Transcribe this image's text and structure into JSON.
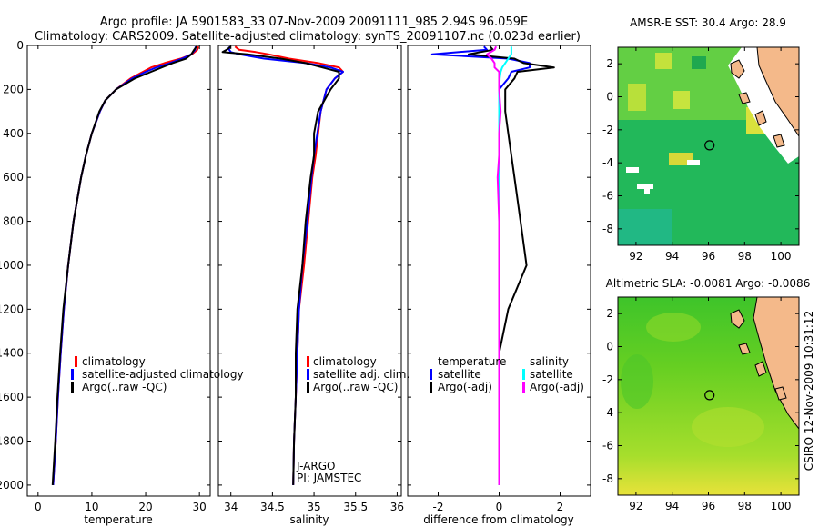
{
  "header": {
    "line1": "Argo profile: JA 5901583_33 07-Nov-2009 20091111_985 2.94S 96.059E",
    "line2": "Climatology: CARS2009. Satellite-adjusted climatology: synTS_20091107.nc (0.023d earlier)"
  },
  "side_text": "CSIRO 12-Nov-2009 10:31:12",
  "colors": {
    "climatology": "#ff0000",
    "satellite": "#0000ff",
    "argo": "#000000",
    "salinity_satellite": "#00ffff",
    "salinity_argo": "#ff00ff",
    "land": "#f4b98a"
  },
  "chart_data": [
    {
      "type": "line",
      "panel": "temperature",
      "xlabel": "temperature",
      "ylabel": "",
      "xlim": [
        -2,
        32
      ],
      "ylim": [
        2050,
        0
      ],
      "xticks": [
        0,
        10,
        20,
        30
      ],
      "yticks": [
        0,
        200,
        400,
        600,
        800,
        1000,
        1200,
        1400,
        1600,
        1800,
        2000
      ],
      "depth": [
        5,
        20,
        40,
        60,
        80,
        100,
        120,
        150,
        200,
        250,
        300,
        400,
        500,
        600,
        800,
        1000,
        1200,
        1400,
        1600,
        1800,
        2000
      ],
      "series": [
        {
          "name": "climatology",
          "color": "#ff0000",
          "values": [
            29.8,
            29.6,
            28.6,
            26.5,
            23.5,
            21.0,
            19.5,
            17.2,
            14.5,
            12.5,
            11.5,
            10.0,
            8.9,
            8.0,
            6.6,
            5.6,
            4.8,
            4.2,
            3.7,
            3.3,
            2.8
          ]
        },
        {
          "name": "satellite-adjusted climatology",
          "color": "#0000ff",
          "values": [
            29.3,
            29.2,
            28.5,
            26.8,
            24.5,
            22.0,
            20.0,
            17.5,
            14.5,
            12.5,
            11.5,
            10.0,
            8.9,
            8.0,
            6.6,
            5.6,
            4.8,
            4.2,
            3.7,
            3.3,
            2.8
          ]
        },
        {
          "name": "Argo(..raw -QC)",
          "color": "#000000",
          "values": [
            29.5,
            29.0,
            28.5,
            27.5,
            25.0,
            23.0,
            21.0,
            18.0,
            14.5,
            12.5,
            11.4,
            10.0,
            8.9,
            8.0,
            6.6,
            5.6,
            4.7,
            4.1,
            3.6,
            3.2,
            2.7
          ]
        }
      ],
      "legend": [
        "climatology",
        "satellite-adjusted climatology",
        "Argo(..raw -QC)"
      ]
    },
    {
      "type": "line",
      "panel": "salinity",
      "xlabel": "salinity",
      "xlim": [
        33.85,
        36.05
      ],
      "ylim": [
        2050,
        0
      ],
      "xticks": [
        34,
        34.5,
        35,
        35.5,
        36
      ],
      "depth": [
        5,
        20,
        30,
        40,
        60,
        80,
        100,
        120,
        150,
        200,
        300,
        400,
        500,
        600,
        800,
        1000,
        1200,
        1400,
        1600,
        1800,
        2000
      ],
      "series": [
        {
          "name": "climatology",
          "color": "#ff0000",
          "values": [
            34.05,
            34.1,
            34.3,
            34.45,
            34.7,
            35.05,
            35.3,
            35.35,
            35.25,
            35.15,
            35.08,
            35.05,
            35.02,
            34.98,
            34.93,
            34.88,
            34.82,
            34.8,
            34.78,
            34.76,
            34.75
          ]
        },
        {
          "name": "satellite adj. clim.",
          "color": "#0000ff",
          "values": [
            33.98,
            33.98,
            34.0,
            34.1,
            34.4,
            34.9,
            35.2,
            35.35,
            35.25,
            35.15,
            35.08,
            35.04,
            35.0,
            34.97,
            34.92,
            34.86,
            34.82,
            34.8,
            34.78,
            34.76,
            34.75
          ]
        },
        {
          "name": "Argo(..raw -QC)",
          "color": "#000000",
          "values": [
            34.0,
            33.95,
            33.9,
            34.2,
            34.6,
            34.9,
            35.1,
            35.3,
            35.3,
            35.2,
            35.05,
            35.0,
            35.0,
            34.96,
            34.9,
            34.86,
            34.8,
            34.78,
            34.78,
            34.76,
            34.75
          ]
        }
      ],
      "legend": [
        "climatology",
        "satellite adj. clim.",
        "Argo(..raw -QC)"
      ],
      "notes": [
        "J-ARGO",
        "PI: JAMSTEC"
      ]
    },
    {
      "type": "line",
      "panel": "difference",
      "xlabel": "difference from climatology",
      "xlim": [
        -3.0,
        3.0
      ],
      "ylim": [
        2050,
        0
      ],
      "xticks": [
        -2,
        0,
        2
      ],
      "depth": [
        5,
        20,
        40,
        60,
        80,
        100,
        120,
        150,
        200,
        300,
        400,
        500,
        600,
        800,
        1000,
        1200,
        1400,
        1600,
        1800,
        2000
      ],
      "series": [
        {
          "name": "temperature satellite",
          "color": "#0000ff",
          "values": [
            -0.5,
            -0.4,
            -2.2,
            0.3,
            1.0,
            1.0,
            0.4,
            0.3,
            0.0,
            0.0,
            0.0,
            0.0,
            0.0,
            0.0,
            0.0,
            0.0,
            0.0,
            0.0,
            0.0,
            0.0
          ]
        },
        {
          "name": "temperature Argo(-adj)",
          "color": "#000000",
          "values": [
            -0.3,
            -0.2,
            -1.0,
            0.5,
            0.8,
            1.8,
            0.6,
            0.5,
            0.2,
            0.2,
            0.3,
            0.4,
            0.5,
            0.7,
            0.9,
            0.3,
            0.0,
            0.0,
            0.0,
            0.0
          ]
        },
        {
          "name": "salinity satellite",
          "color": "#00ffff",
          "values": [
            0.4,
            0.4,
            0.4,
            0.3,
            0.2,
            0.1,
            0.05,
            0.02,
            0.0,
            0.0,
            0.0,
            0.0,
            0.0,
            0.0,
            0.0,
            0.0,
            0.0,
            0.0,
            0.0,
            0.0
          ]
        },
        {
          "name": "salinity Argo(-adj)",
          "color": "#ff00ff",
          "values": [
            -0.1,
            -0.15,
            -0.4,
            -0.25,
            -0.15,
            -0.15,
            0.0,
            0.0,
            0.0,
            0.05,
            0.0,
            0.0,
            -0.05,
            0.0,
            0.0,
            0.0,
            0.0,
            0.0,
            0.0,
            0.0
          ]
        }
      ],
      "legend_left_title": "temperature",
      "legend_right_title": "salinity",
      "legend": [
        "satellite",
        "Argo(-adj)",
        "satellite",
        "Argo(-adj)"
      ]
    },
    {
      "type": "heatmap",
      "panel": "sst-map",
      "title": "AMSR-E SST: 30.4 Argo: 28.9",
      "xlim": [
        91,
        101
      ],
      "ylim": [
        -9,
        3
      ],
      "xticks": [
        92,
        94,
        96,
        98,
        100
      ],
      "yticks": [
        2,
        0,
        -2,
        -4,
        -6,
        -8
      ],
      "profile_location": [
        96.059,
        -2.94
      ]
    },
    {
      "type": "heatmap",
      "panel": "sla-map",
      "title": "Altimetric SLA: -0.0081 Argo: -0.0086",
      "xlim": [
        91,
        101
      ],
      "ylim": [
        -9,
        3
      ],
      "xticks": [
        92,
        94,
        96,
        98,
        100
      ],
      "yticks": [
        2,
        0,
        -2,
        -4,
        -6,
        -8
      ],
      "profile_location": [
        96.059,
        -2.94
      ]
    }
  ]
}
